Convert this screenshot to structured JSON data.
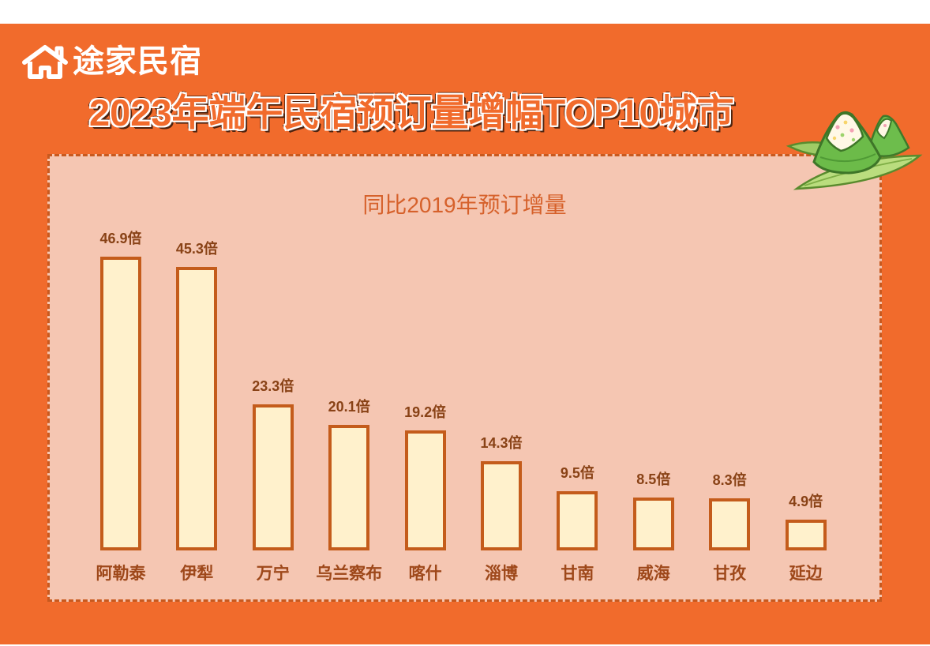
{
  "brand": {
    "name": "途家民宿",
    "logo_icon": "house-icon"
  },
  "title": "2023年端午民宿预订量增幅TOP10城市",
  "decoration_icon": "zongzi-icon",
  "colors": {
    "background": "#F16B2C",
    "panel": "#F5C6B2",
    "panel_border": "#C8591E",
    "bar_fill": "#FFF1CC",
    "bar_stroke": "#C45C1B",
    "subtitle": "#D6612B",
    "value_label": "#894216",
    "category_label": "#9E481A"
  },
  "chart_data": {
    "type": "bar",
    "title": "同比2019年预订增量",
    "categories": [
      "阿勒泰",
      "伊犁",
      "万宁",
      "乌兰察布",
      "喀什",
      "淄博",
      "甘南",
      "威海",
      "甘孜",
      "延边"
    ],
    "values": [
      46.9,
      45.3,
      23.3,
      20.1,
      19.2,
      14.3,
      9.5,
      8.5,
      8.3,
      4.9
    ],
    "value_suffix": "倍",
    "xlabel": "",
    "ylabel": "",
    "grid": false,
    "legend": "none",
    "data_labels": true
  }
}
